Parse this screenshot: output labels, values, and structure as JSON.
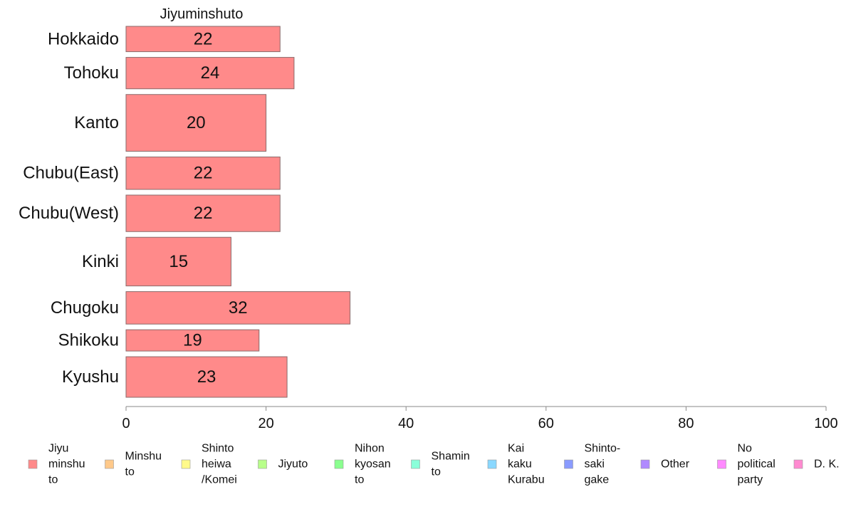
{
  "chart_data": {
    "type": "bar",
    "orientation": "horizontal",
    "title": "",
    "xlabel": "",
    "ylabel": "",
    "series_title": "Jiyuminshuto",
    "categories": [
      "Hokkaido",
      "Tohoku",
      "Kanto",
      "Chubu(East)",
      "Chubu(West)",
      "Kinki",
      "Chugoku",
      "Shikoku",
      "Kyushu"
    ],
    "bar_weights": [
      2.5,
      3.1,
      5.6,
      3.2,
      3.6,
      4.8,
      3.2,
      2.1,
      4.0
    ],
    "series": [
      {
        "name": "Jiyuminshuto",
        "values": [
          22,
          24,
          20,
          22,
          22,
          15,
          32,
          19,
          23
        ],
        "labels": [
          "22",
          "24",
          "20",
          "22",
          "22",
          "15",
          "32",
          "19",
          "23"
        ]
      }
    ],
    "xlim": [
      0,
      100
    ],
    "xticks": [
      0,
      20,
      40,
      60,
      80,
      100
    ],
    "xtick_labels": [
      "0",
      "20",
      "40",
      "60",
      "80",
      "100"
    ],
    "grid": false,
    "legend_position": "bottom",
    "legend": [
      {
        "lines": [
          "Jiyu",
          "minshu",
          "to"
        ],
        "color": "#ff8a8a"
      },
      {
        "lines": [
          "Minshu",
          "to"
        ],
        "color": "#ffc98a"
      },
      {
        "lines": [
          "Shinto",
          "heiwa",
          "/Komei"
        ],
        "color": "#fffa8a"
      },
      {
        "lines": [
          "Jiyuto"
        ],
        "color": "#b8ff8a"
      },
      {
        "lines": [
          "Nihon",
          "kyosan",
          "to"
        ],
        "color": "#8aff8f"
      },
      {
        "lines": [
          "Shamin",
          "to"
        ],
        "color": "#8affd9"
      },
      {
        "lines": [
          "Kai",
          "kaku",
          "Kurabu"
        ],
        "color": "#8ad8ff"
      },
      {
        "lines": [
          "Shinto-",
          "saki",
          "gake"
        ],
        "color": "#8a9bff"
      },
      {
        "lines": [
          "Other"
        ],
        "color": "#b08aff"
      },
      {
        "lines": [
          "No",
          "political",
          "party"
        ],
        "color": "#ff8aff"
      },
      {
        "lines": [
          "D. K."
        ],
        "color": "#ff8ad0"
      }
    ],
    "colors": {
      "bar_fill": "#ff8a8a",
      "bar_stroke": "#8a6a6a",
      "axis": "#888888"
    }
  }
}
